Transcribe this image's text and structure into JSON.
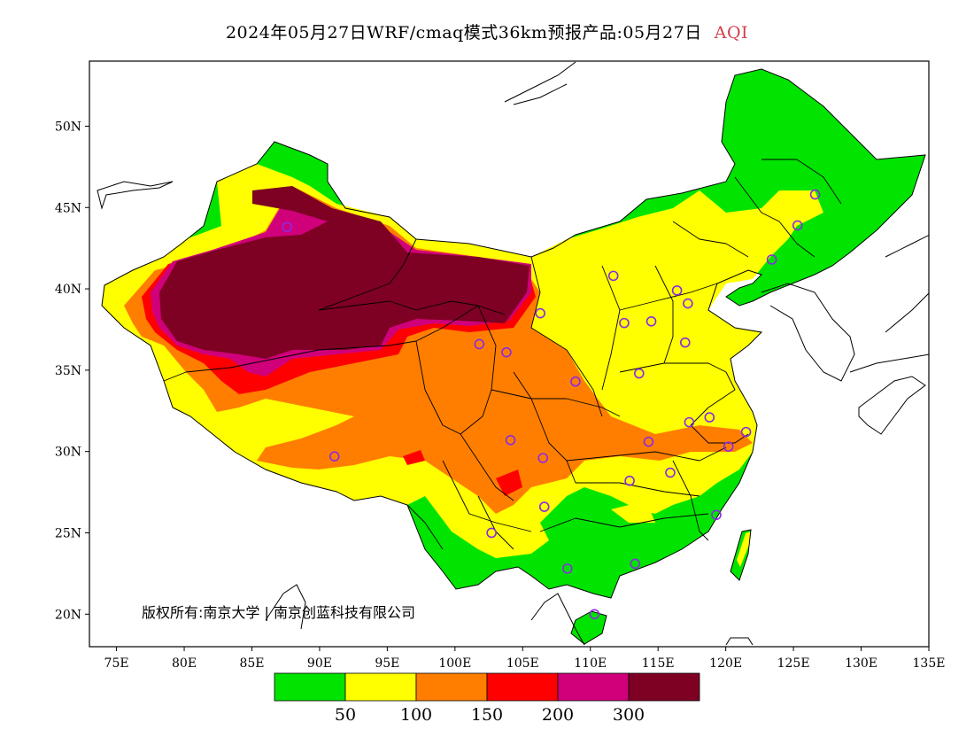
{
  "title": {
    "main": "2024年05月27日WRF/cmaq模式36km预报产品:05月27日",
    "variable": "AQI",
    "variable_color": "#d0404a"
  },
  "map": {
    "lon_range": [
      73,
      135
    ],
    "lat_range": [
      18,
      54
    ],
    "x_ticks": [
      "75E",
      "80E",
      "85E",
      "90E",
      "95E",
      "100E",
      "105E",
      "110E",
      "115E",
      "120E",
      "125E",
      "130E",
      "135E"
    ],
    "y_ticks": [
      "20N",
      "25N",
      "30N",
      "35N",
      "40N",
      "45N",
      "50N"
    ],
    "copyright": "版权所有:南京大学 | 南京创蓝科技有限公司",
    "station_marker_color": "#8b2be2",
    "stations": [
      [
        87.6,
        43.8
      ],
      [
        91.1,
        29.7
      ],
      [
        101.8,
        36.6
      ],
      [
        103.8,
        36.1
      ],
      [
        104.1,
        30.7
      ],
      [
        102.7,
        25.0
      ],
      [
        106.6,
        26.6
      ],
      [
        106.5,
        29.6
      ],
      [
        108.9,
        34.3
      ],
      [
        106.3,
        38.5
      ],
      [
        108.3,
        22.8
      ],
      [
        110.3,
        20.0
      ],
      [
        113.3,
        23.1
      ],
      [
        112.9,
        28.2
      ],
      [
        114.3,
        30.6
      ],
      [
        115.9,
        28.7
      ],
      [
        117.3,
        31.8
      ],
      [
        118.8,
        32.1
      ],
      [
        120.2,
        30.3
      ],
      [
        121.5,
        31.2
      ],
      [
        119.3,
        26.1
      ],
      [
        113.6,
        34.8
      ],
      [
        117.0,
        36.7
      ],
      [
        114.5,
        38.0
      ],
      [
        112.5,
        37.9
      ],
      [
        111.7,
        40.8
      ],
      [
        116.4,
        39.9
      ],
      [
        117.2,
        39.1
      ],
      [
        123.4,
        41.8
      ],
      [
        125.3,
        43.9
      ],
      [
        126.6,
        45.8
      ]
    ]
  },
  "legend": {
    "categories": [
      {
        "label": "",
        "color": "#00e400"
      },
      {
        "label": "50",
        "color": "#ffff00"
      },
      {
        "label": "100",
        "color": "#ff7e00"
      },
      {
        "label": "150",
        "color": "#ff0000"
      },
      {
        "label": "200",
        "color": "#d0007a"
      },
      {
        "label": "300",
        "color": "#7e0023"
      }
    ]
  },
  "colors": {
    "good": "#00e400",
    "moderate": "#ffff00",
    "usg": "#ff7e00",
    "unhealthy": "#ff0000",
    "very_unhealthy": "#d0007a",
    "hazardous": "#7e0023"
  }
}
